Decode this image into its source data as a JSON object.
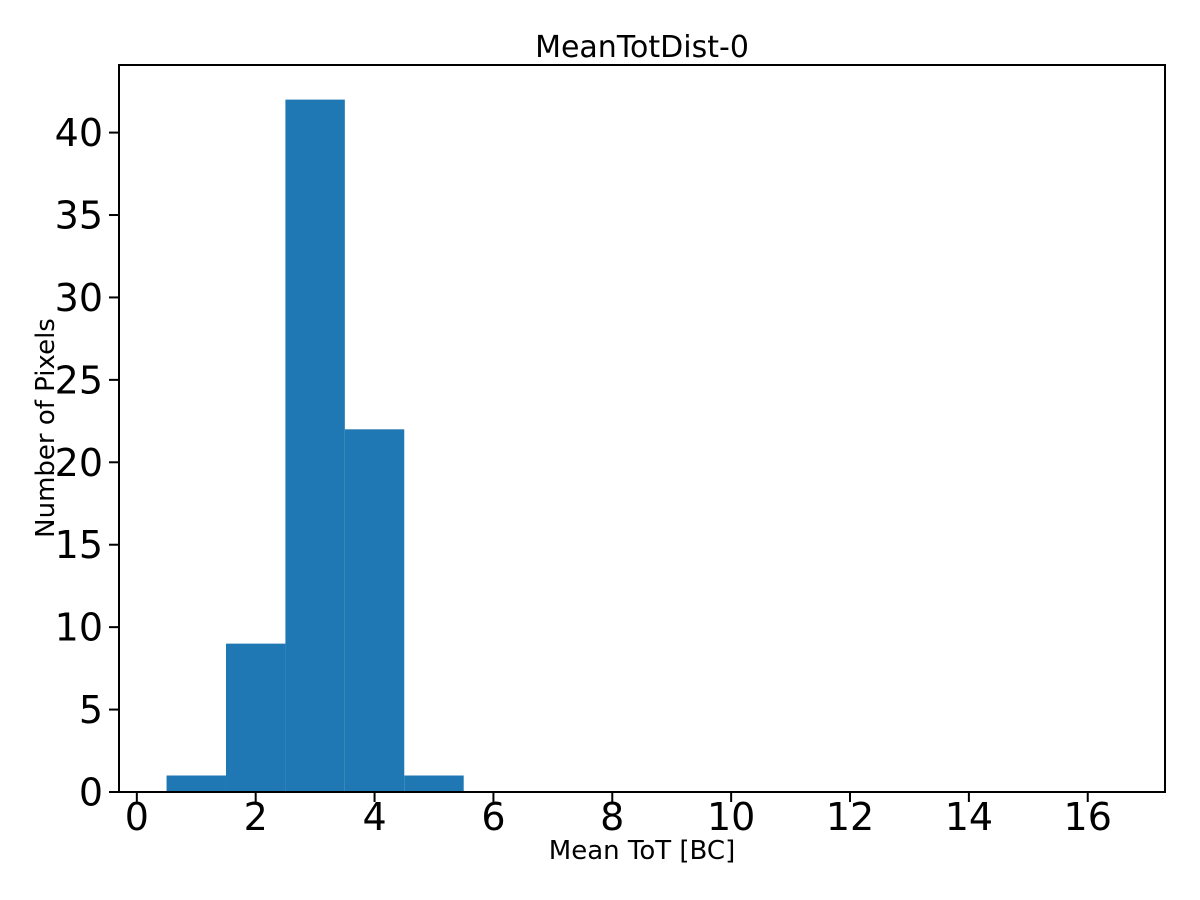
{
  "figure": {
    "background_color": "#ffffff",
    "text_color": "#000000"
  },
  "chart_data": {
    "type": "bar",
    "subtype": "histogram",
    "title": "MeanTotDist-0",
    "xlabel": "Mean ToT [BC]",
    "ylabel": "Number of Pixels",
    "bin_edges": [
      0.5,
      1.5,
      2.5,
      3.5,
      4.5,
      5.5
    ],
    "counts": [
      1,
      9,
      42,
      22,
      1
    ],
    "bar_color": "#1f77b4",
    "xlim": [
      -0.3,
      17.3
    ],
    "ylim": [
      0,
      44.1
    ],
    "xticks": [
      0,
      2,
      4,
      6,
      8,
      10,
      12,
      14,
      16
    ],
    "yticks": [
      0,
      5,
      10,
      15,
      20,
      25,
      30,
      35,
      40
    ],
    "grid": false,
    "legend": null,
    "axis_color": "#000000",
    "tick_label_color": "#000000"
  }
}
